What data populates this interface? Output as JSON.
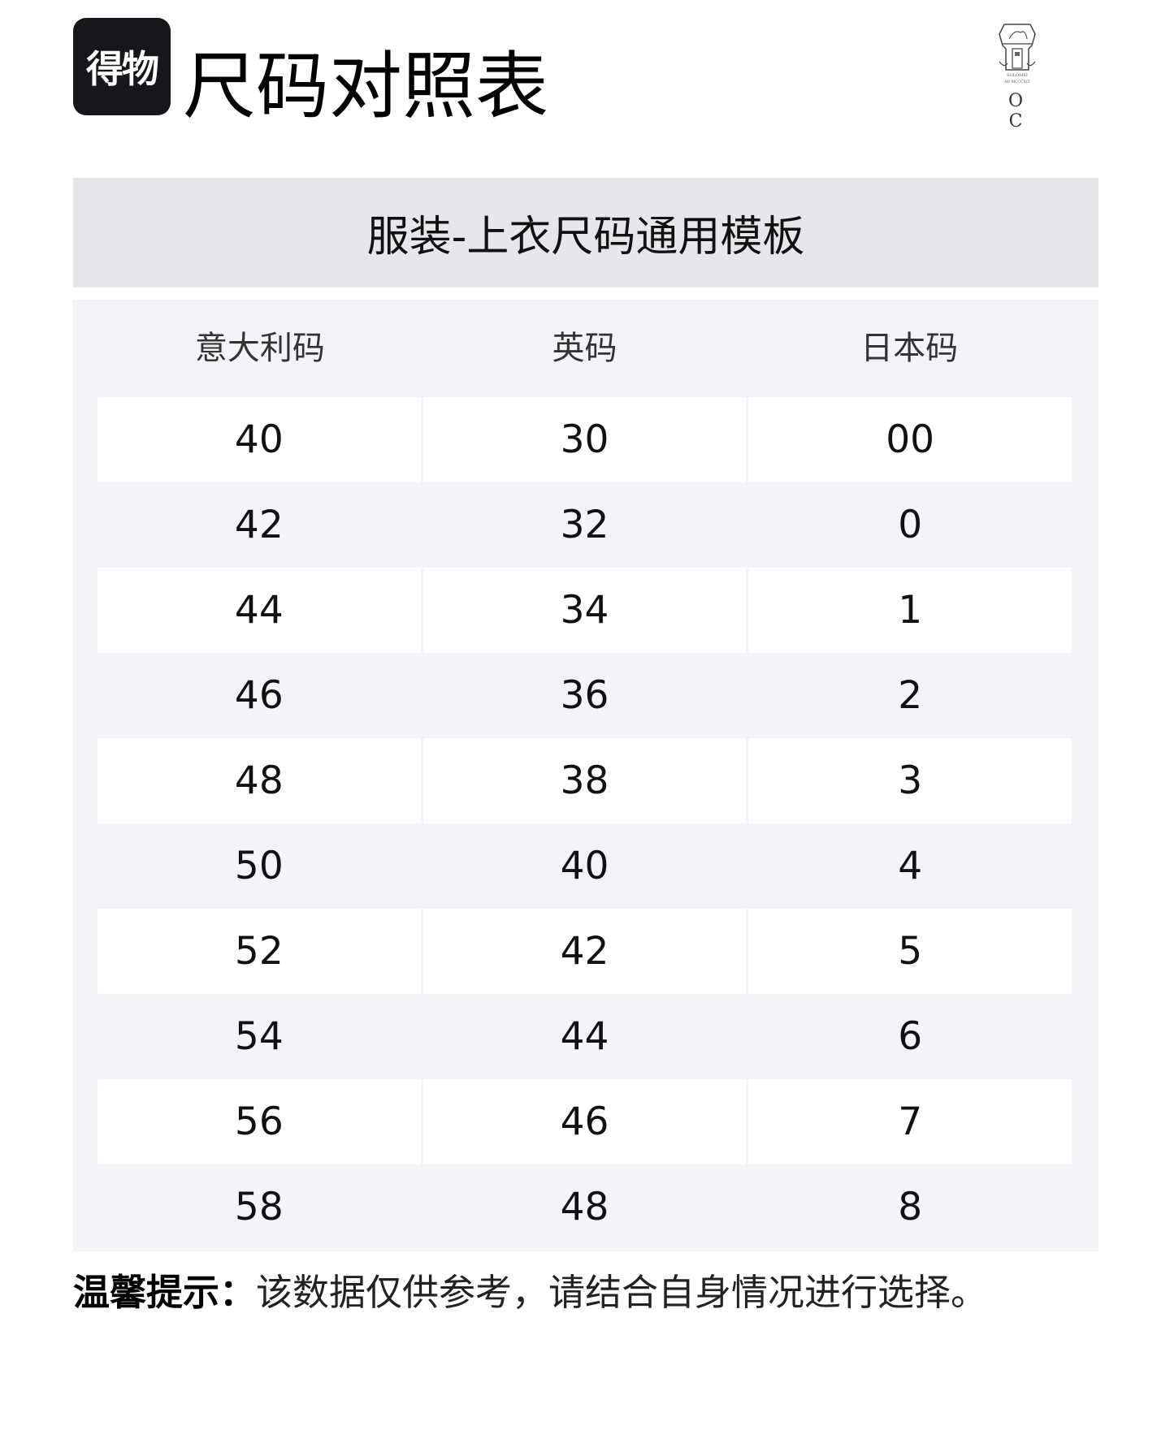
{
  "header": {
    "app_logo_text": "得物",
    "title": "尺码对照表",
    "brand_logo_text": "O C",
    "brand_logo_small": "SOLOMEI AD MCCCXCI"
  },
  "section": {
    "title": "服装-上衣尺码通用模板"
  },
  "table": {
    "columns": [
      "意大利码",
      "英码",
      "日本码"
    ],
    "rows": [
      [
        "40",
        "30",
        "00"
      ],
      [
        "42",
        "32",
        "0"
      ],
      [
        "44",
        "34",
        "1"
      ],
      [
        "46",
        "36",
        "2"
      ],
      [
        "48",
        "38",
        "3"
      ],
      [
        "50",
        "40",
        "4"
      ],
      [
        "52",
        "42",
        "5"
      ],
      [
        "54",
        "44",
        "6"
      ],
      [
        "56",
        "46",
        "7"
      ],
      [
        "58",
        "48",
        "8"
      ]
    ]
  },
  "footer": {
    "tip_label": "温馨提示：",
    "tip_text": "该数据仅供参考，请结合自身情况进行选择。"
  },
  "colors": {
    "section_bg": "#e6e6eb",
    "panel_bg": "#f4f4f8",
    "logo_bg": "#17171b"
  }
}
